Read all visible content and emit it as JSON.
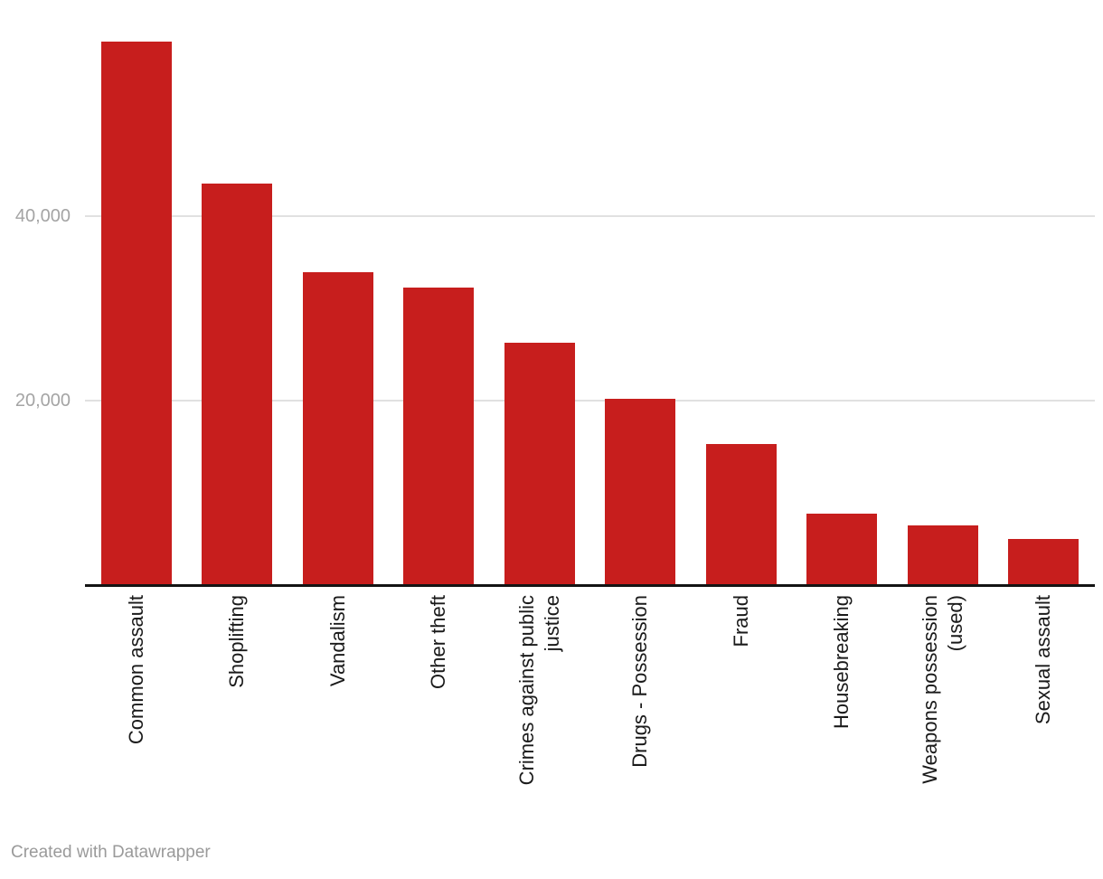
{
  "chart_data": {
    "type": "bar",
    "title": "",
    "xlabel": "",
    "ylabel": "",
    "categories": [
      "Common assault",
      "Shoplifting",
      "Vandalism",
      "Other theft",
      "Crimes against public justice",
      "Drugs - Possession",
      "Fraud",
      "Housebreaking",
      "Weapons possession (used)",
      "Sexual assault"
    ],
    "values": [
      59000,
      43600,
      33900,
      32300,
      26300,
      20200,
      15200,
      7700,
      6400,
      4900
    ],
    "label_lines": [
      [
        "Common assault"
      ],
      [
        "Shoplifting"
      ],
      [
        "Vandalism"
      ],
      [
        "Other theft"
      ],
      [
        "Crimes against public",
        "justice"
      ],
      [
        "Drugs - Possession"
      ],
      [
        "Fraud"
      ],
      [
        "Housebreaking"
      ],
      [
        "Weapons possession",
        "(used)"
      ],
      [
        "Sexual assault"
      ]
    ],
    "y_ticks": [
      {
        "value": 20000,
        "label": "20,000"
      },
      {
        "value": 40000,
        "label": "40,000"
      }
    ],
    "ylim": [
      0,
      63600
    ],
    "grid": "horizontal-only",
    "legend": "none",
    "bar_color": "#c71e1d"
  },
  "colors": {
    "bar": "#c71e1d",
    "axis_line": "#141414",
    "gridline": "#e1e1e1",
    "tick_label": "#a4a4a4",
    "category_label": "#1a1a1a",
    "footer_text": "#9a9a9a"
  },
  "footer": {
    "text": "Created with Datawrapper"
  }
}
